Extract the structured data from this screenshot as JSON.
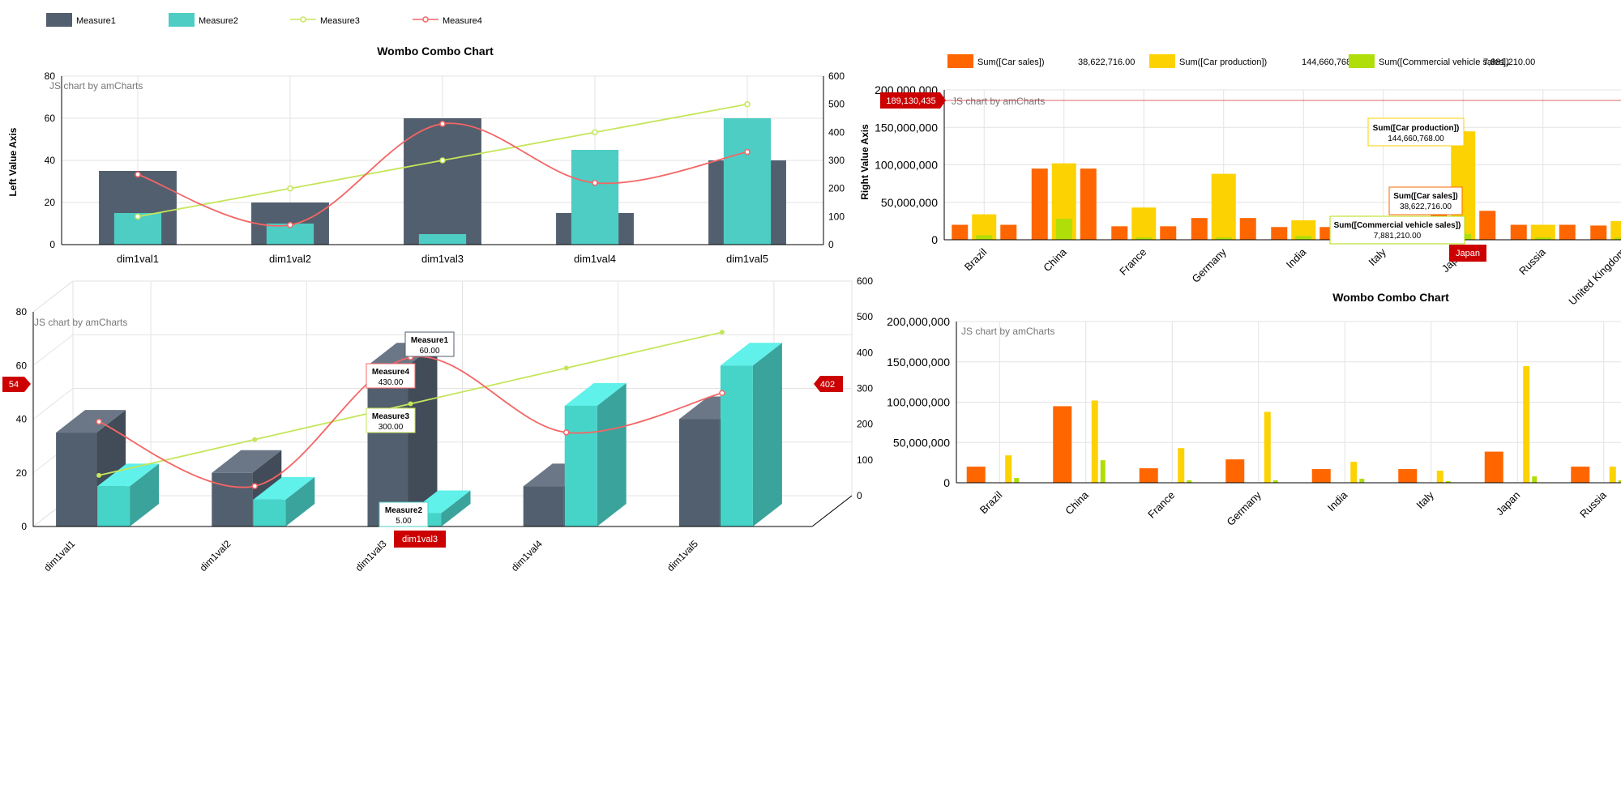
{
  "colors": {
    "m1": "#525f6e",
    "m1_top": "#6b7786",
    "m1_side": "#414c58",
    "m2": "#4ecdc4",
    "m2_3d": "#47d4c8",
    "m2_top": "#5ff1ea",
    "m2_side": "#3aa39b",
    "m3": "#c5e65a",
    "m4": "#f46565",
    "car_sales": "#ff6600",
    "car_prod": "#fcd202",
    "commercial": "#b0de09",
    "balloon_red": "#cc0000",
    "grid": "#e3e3e3",
    "axis": "#000000"
  },
  "icons": {
    "legend_line_marker": "circle-marker-icon"
  },
  "left_panel": {
    "legend": [
      "Measure1",
      "Measure2",
      "Measure3",
      "Measure4"
    ],
    "title": "Wombo Combo Chart",
    "credit": "JS chart by amCharts",
    "left_axis_label": "Left Value Axis",
    "right_axis_label": "Right Value Axis"
  },
  "right_panel": {
    "legend": {
      "items": [
        "Sum([Car sales])",
        "Sum([Car production])",
        "Sum([Commercial vehicle sales])"
      ],
      "values": [
        "38,622,716.00",
        "144,660,768.00",
        "7,881,210.00"
      ]
    },
    "credit": "JS chart by amCharts",
    "cursor_value": "189,130,435",
    "cursor_category": "Japan",
    "balloons": [
      {
        "title": "Sum([Car production])",
        "value": "144,660,768.00"
      },
      {
        "title": "Sum([Car sales])",
        "value": "38,622,716.00"
      },
      {
        "title": "Sum([Commercial vehicle sales])",
        "value": "7,881,210.00"
      }
    ],
    "title2": "Wombo Combo Chart",
    "credit2": "JS chart by amCharts"
  },
  "lower_left": {
    "credit": "JS chart by amCharts",
    "balloons": [
      {
        "title": "Measure1",
        "value": "60.00"
      },
      {
        "title": "Measure4",
        "value": "430.00"
      },
      {
        "title": "Measure3",
        "value": "300.00"
      },
      {
        "title": "Measure2",
        "value": "5.00"
      }
    ],
    "cursor_left": "54",
    "cursor_right": "402",
    "cursor_category": "dim1val3"
  },
  "chart_data": [
    {
      "type": "bar",
      "title": "Wombo Combo Chart",
      "categories": [
        "dim1val1",
        "dim1val2",
        "dim1val3",
        "dim1val4",
        "dim1val5"
      ],
      "ylabel": "Left Value Axis",
      "y2label": "Right Value Axis",
      "ylim": [
        0,
        80
      ],
      "y2lim": [
        0,
        600
      ],
      "yticks": [
        "0",
        "20",
        "40",
        "60",
        "80"
      ],
      "y2ticks": [
        "0",
        "100",
        "200",
        "300",
        "400",
        "500",
        "600"
      ],
      "series": [
        {
          "name": "Measure1",
          "type": "column",
          "axis": "left",
          "values": [
            35,
            20,
            60,
            15,
            40
          ]
        },
        {
          "name": "Measure2",
          "type": "column",
          "axis": "left",
          "values": [
            15,
            10,
            5,
            45,
            60
          ]
        },
        {
          "name": "Measure3",
          "type": "line",
          "axis": "right",
          "values": [
            100,
            200,
            300,
            400,
            500
          ]
        },
        {
          "name": "Measure4",
          "type": "smoothed-line",
          "axis": "right",
          "values": [
            250,
            70,
            430,
            220,
            330
          ]
        }
      ],
      "legend": "top-left",
      "grid": true
    },
    {
      "type": "bar",
      "categories": [
        "Brazil",
        "China",
        "France",
        "Germany",
        "India",
        "Italy",
        "Japan",
        "Russia",
        "United Kingdom"
      ],
      "ylabel": "Right Value Axis",
      "ylim": [
        0,
        200000000
      ],
      "yticks": [
        "0",
        "50,000,000",
        "100,000,000",
        "150,000,000",
        "200,000,000"
      ],
      "series": [
        {
          "name": "Sum([Car sales])",
          "values": [
            20000000,
            95000000,
            18000000,
            29000000,
            17000000,
            17000000,
            38622716,
            20000000,
            19000000
          ]
        },
        {
          "name": "Sum([Car production])",
          "values": [
            34000000,
            102000000,
            43000000,
            88000000,
            26000000,
            15000000,
            144660768,
            20000000,
            25000000
          ]
        },
        {
          "name": "Sum([Commercial vehicle sales])",
          "values": [
            6000000,
            28000000,
            3000000,
            3000000,
            5000000,
            2000000,
            7881210,
            3000000,
            3000000
          ]
        }
      ],
      "legend": "top",
      "grid": true
    },
    {
      "type": "bar",
      "title": "Wombo Combo Chart",
      "categories": [
        "Brazil",
        "China",
        "France",
        "Germany",
        "India",
        "Italy",
        "Japan",
        "Russia"
      ],
      "ylim": [
        0,
        200000000
      ],
      "yticks": [
        "0",
        "50,000,000",
        "100,000,000",
        "150,000,000",
        "200,000,000"
      ],
      "series": [
        {
          "name": "Sum([Car sales])",
          "values": [
            20000000,
            95000000,
            18000000,
            29000000,
            17000000,
            17000000,
            38622716,
            20000000
          ]
        },
        {
          "name": "Sum([Car production])",
          "values": [
            34000000,
            102000000,
            43000000,
            88000000,
            26000000,
            15000000,
            144660768,
            20000000
          ]
        },
        {
          "name": "Sum([Commercial vehicle sales])",
          "values": [
            6000000,
            28000000,
            3000000,
            3000000,
            5000000,
            2000000,
            7881210,
            3000000
          ]
        }
      ],
      "grid": true
    },
    {
      "type": "bar",
      "categories": [
        "dim1val1",
        "dim1val2",
        "dim1val3",
        "dim1val4",
        "dim1val5"
      ],
      "ylim": [
        0,
        80
      ],
      "y2lim": [
        0,
        600
      ],
      "yticks": [
        "0",
        "20",
        "40",
        "60",
        "80"
      ],
      "y2ticks": [
        "0",
        "100",
        "200",
        "300",
        "400",
        "500",
        "600"
      ],
      "series": [
        {
          "name": "Measure1",
          "type": "3d-column",
          "axis": "left",
          "values": [
            35,
            20,
            60,
            15,
            40
          ]
        },
        {
          "name": "Measure2",
          "type": "3d-column",
          "axis": "left",
          "values": [
            15,
            10,
            5,
            45,
            60
          ]
        },
        {
          "name": "Measure3",
          "type": "line",
          "axis": "right",
          "values": [
            100,
            200,
            300,
            400,
            500
          ]
        },
        {
          "name": "Measure4",
          "type": "smoothed-line",
          "axis": "right",
          "values": [
            250,
            70,
            430,
            220,
            330
          ]
        }
      ],
      "grid": true
    }
  ]
}
